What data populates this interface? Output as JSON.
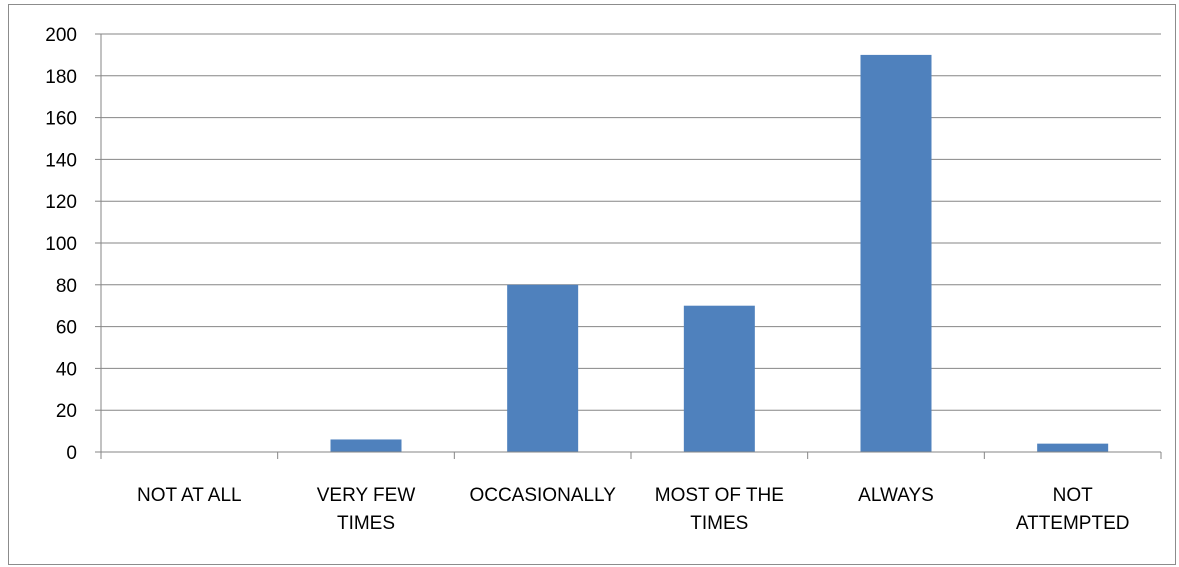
{
  "chart_data": {
    "type": "bar",
    "categories": [
      [
        "NOT AT ALL"
      ],
      [
        "VERY FEW",
        "TIMES"
      ],
      [
        "OCCASIONALLY"
      ],
      [
        "MOST OF THE",
        "TIMES"
      ],
      [
        "ALWAYS"
      ],
      [
        "NOT",
        "ATTEMPTED"
      ]
    ],
    "values": [
      0,
      6,
      80,
      70,
      190,
      4
    ],
    "ylim": [
      0,
      200
    ],
    "yticks": [
      0,
      20,
      40,
      60,
      80,
      100,
      120,
      140,
      160,
      180,
      200
    ],
    "title": "",
    "xlabel": "",
    "ylabel": "",
    "grid": true,
    "legend": "none",
    "bar_color": "#4f81bd",
    "grid_color": "#868686",
    "axis_color": "#868686"
  }
}
